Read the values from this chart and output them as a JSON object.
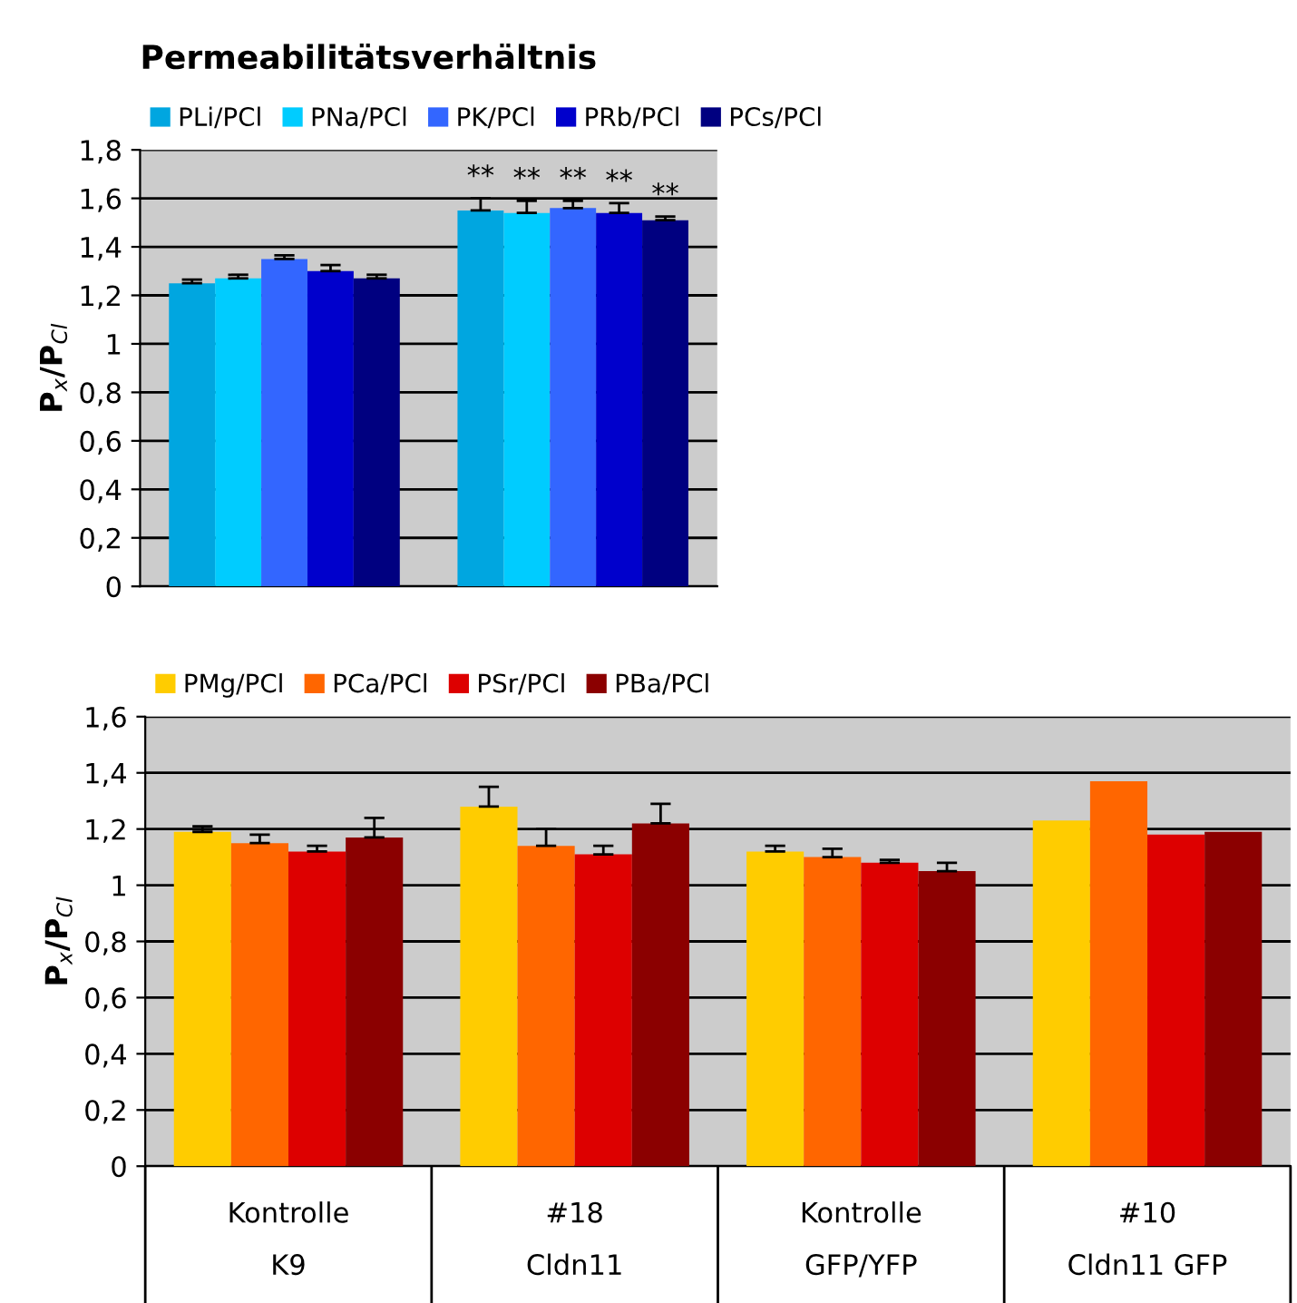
{
  "chart_data": [
    {
      "type": "bar",
      "title": "Permeabilitätsverhältnis",
      "ylabel": "P$_{x}$/P$_{Cl}$",
      "categories": [
        null,
        null
      ],
      "ylim": [
        0,
        1.8
      ],
      "yticks": [
        0,
        {
          "value": 0.2,
          "label": "0,2"
        },
        {
          "value": 0.4,
          "label": "0,4"
        },
        {
          "value": 0.6,
          "label": "0,6"
        },
        {
          "value": 0.8,
          "label": "0,8"
        },
        1,
        {
          "value": 1.2,
          "label": "1,2"
        },
        {
          "value": 1.4,
          "label": "1,4"
        },
        {
          "value": 1.6,
          "label": "1,6"
        },
        {
          "value": 1.8,
          "label": "1,8"
        }
      ],
      "grid": "y",
      "legend": "top",
      "series": [
        {
          "name": "PLi/PCl",
          "color": "#00a6e0",
          "values": [
            1.25,
            1.55
          ],
          "errors": [
            0.015,
            0.05
          ],
          "value_labels": [
            null,
            "**"
          ]
        },
        {
          "name": "PNa/PCl",
          "color": "#00ccff",
          "values": [
            1.27,
            1.54
          ],
          "errors": [
            0.015,
            0.05
          ],
          "value_labels": [
            null,
            "**"
          ]
        },
        {
          "name": "PK/PCl",
          "color": "#3366ff",
          "values": [
            1.35,
            1.56
          ],
          "errors": [
            0.015,
            0.03
          ],
          "value_labels": [
            null,
            "**"
          ]
        },
        {
          "name": "PRb/PCl",
          "color": "#0000cc",
          "values": [
            1.3,
            1.54
          ],
          "errors": [
            0.025,
            0.04
          ],
          "value_labels": [
            null,
            "**"
          ]
        },
        {
          "name": "PCs/PCl",
          "color": "#000080",
          "values": [
            1.27,
            1.51
          ],
          "errors": [
            0.015,
            0.015
          ],
          "value_labels": [
            null,
            "**"
          ]
        }
      ]
    },
    {
      "type": "bar",
      "ylabel": "P$_{x}$/P$_{Cl}$",
      "categories": [
        "Kontrolle\nK9",
        "#18\nCldn11",
        "Kontrolle\nGFP/YFP",
        "#10\nCldn11 GFP"
      ],
      "ylim": [
        0,
        1.6
      ],
      "yticks": [
        0,
        {
          "value": 0.2,
          "label": "0,2"
        },
        {
          "value": 0.4,
          "label": "0,4"
        },
        {
          "value": 0.6,
          "label": "0,6"
        },
        {
          "value": 0.8,
          "label": "0,8"
        },
        1,
        {
          "value": 1.2,
          "label": "1,2"
        },
        {
          "value": 1.4,
          "label": "1,4"
        },
        {
          "value": 1.6,
          "label": "1,6"
        }
      ],
      "grid": "y",
      "legend": "top",
      "series": [
        {
          "name": "PMg/PCl",
          "color": "#ffcc00",
          "values": [
            1.19,
            1.28,
            1.12,
            1.23
          ],
          "errors": [
            0.02,
            0.07,
            0.02,
            null
          ]
        },
        {
          "name": "PCa/PCl",
          "color": "#ff6600",
          "values": [
            1.15,
            1.14,
            1.1,
            1.37
          ],
          "errors": [
            0.03,
            0.06,
            0.03,
            null
          ]
        },
        {
          "name": "PSr/PCl",
          "color": "#dd0000",
          "values": [
            1.12,
            1.11,
            1.08,
            1.18
          ],
          "errors": [
            0.02,
            0.03,
            0.01,
            null
          ]
        },
        {
          "name": "PBa/PCl",
          "color": "#8b0000",
          "values": [
            1.17,
            1.22,
            1.05,
            1.19
          ],
          "errors": [
            0.07,
            0.07,
            0.03,
            null
          ]
        }
      ]
    }
  ]
}
